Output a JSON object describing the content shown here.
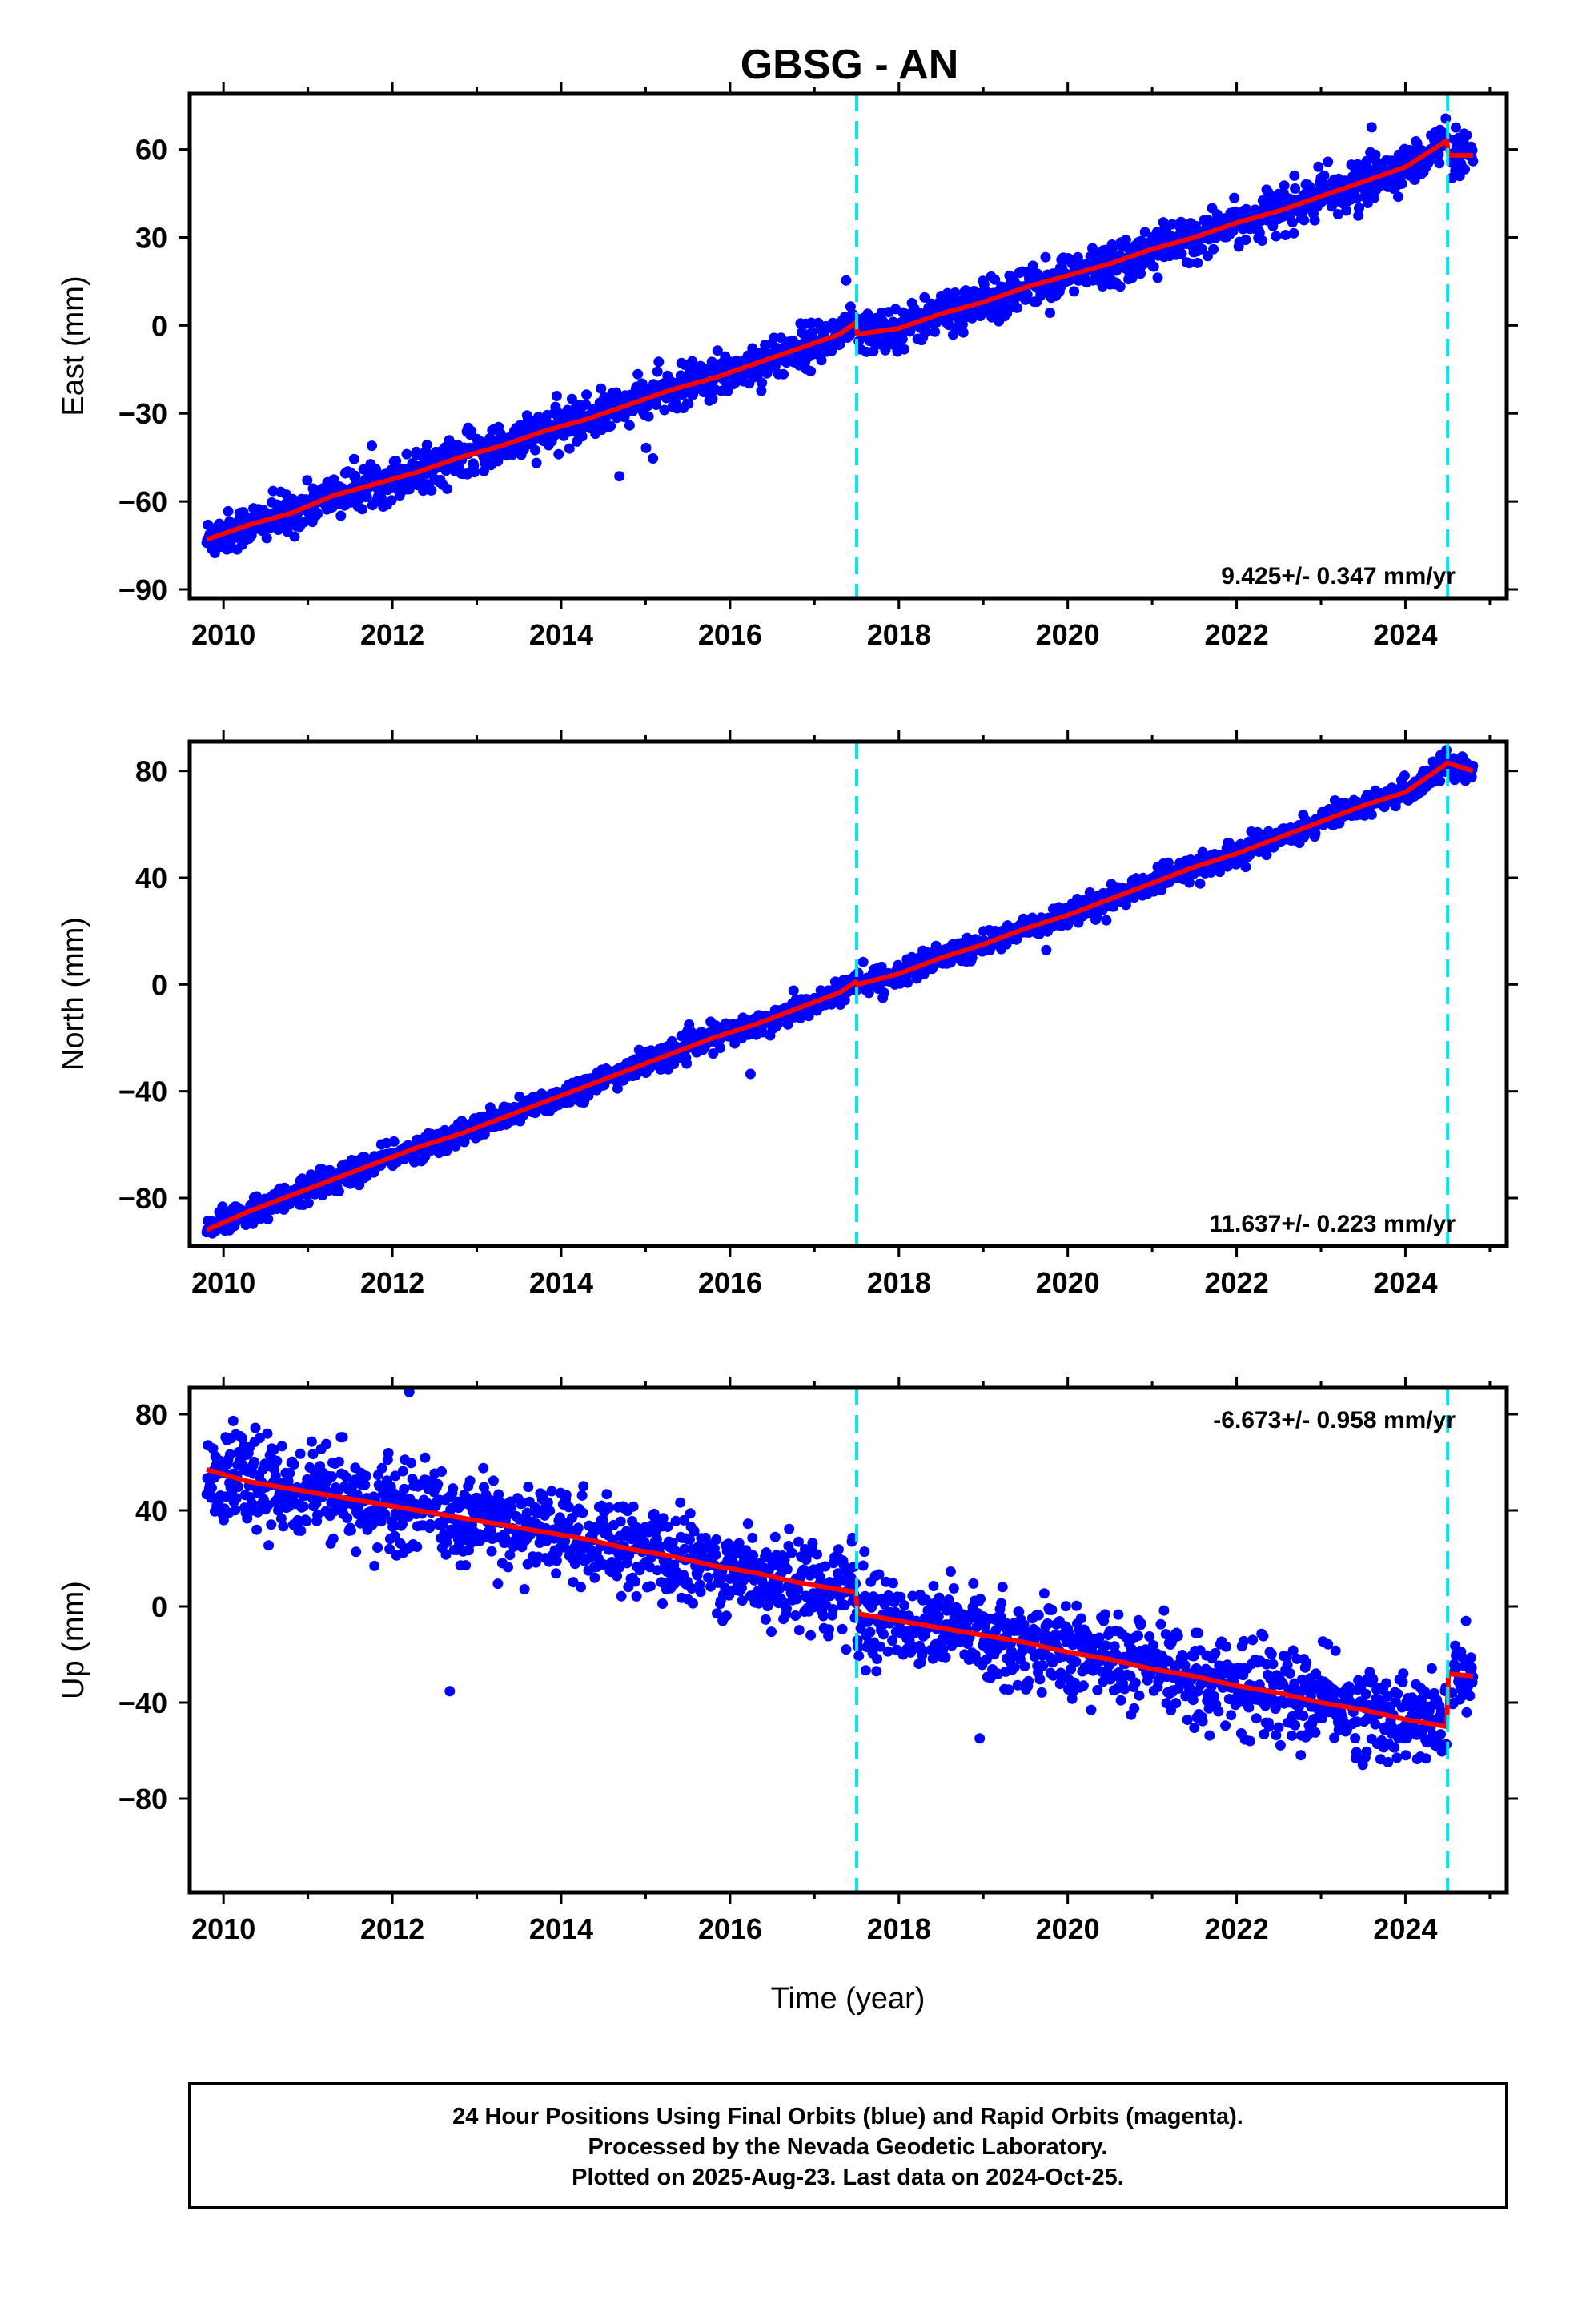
{
  "title": "GBSG - AN",
  "xlabel": "Time (year)",
  "footer": {
    "line1": "24 Hour Positions Using Final Orbits (blue) and Rapid Orbits (magenta).",
    "line2": "Processed by the Nevada Geodetic Laboratory.",
    "line3": "Plotted on 2025-Aug-23. Last data on 2024-Oct-25."
  },
  "colors": {
    "data": "#0000ff",
    "model": "#ff0000",
    "events": "#00e5ee",
    "frame": "#000000"
  },
  "chart_data": [
    {
      "type": "scatter",
      "ylabel": "East (mm)",
      "rate_label": "9.425+/- 0.347 mm/yr",
      "rate_position": "bottom-right",
      "xlim": [
        2009.6,
        2025.2
      ],
      "ylim": [
        -93,
        79
      ],
      "x_ticks": [
        "2010",
        "2012",
        "2014",
        "2016",
        "2018",
        "2020",
        "2022",
        "2024"
      ],
      "y_ticks": [
        "60",
        "30",
        "0",
        "-30",
        "-60",
        "-90"
      ],
      "events_x": [
        2017.5,
        2024.5
      ],
      "model": {
        "x": [
          2009.8,
          2010.3,
          2010.8,
          2011.3,
          2011.8,
          2012.3,
          2012.8,
          2013.3,
          2013.8,
          2014.3,
          2014.8,
          2015.3,
          2015.8,
          2016.3,
          2016.8,
          2017.3,
          2017.49,
          2017.51,
          2018.0,
          2018.5,
          2019.0,
          2019.5,
          2020.0,
          2020.5,
          2021.0,
          2021.5,
          2022.0,
          2022.5,
          2023.0,
          2023.5,
          2024.0,
          2024.49,
          2024.51,
          2024.8
        ],
        "y": [
          -73,
          -68,
          -64,
          -58,
          -54,
          -50,
          -45,
          -41,
          -36,
          -32,
          -27,
          -22,
          -18,
          -13,
          -8,
          -3,
          1,
          -3,
          -1,
          4,
          8,
          13,
          17,
          21,
          26,
          30,
          35,
          39,
          44,
          49,
          54,
          63,
          58,
          58
        ]
      },
      "scatter_sigma": 3.5
    },
    {
      "type": "scatter",
      "ylabel": "North (mm)",
      "rate_label": "11.637+/- 0.223 mm/yr",
      "rate_position": "bottom-right",
      "xlim": [
        2009.6,
        2025.2
      ],
      "ylim": [
        -98,
        91
      ],
      "x_ticks": [
        "2010",
        "2012",
        "2014",
        "2016",
        "2018",
        "2020",
        "2022",
        "2024"
      ],
      "y_ticks": [
        "80",
        "40",
        "0",
        "-40",
        "-80"
      ],
      "events_x": [
        2017.5,
        2024.5
      ],
      "model": {
        "x": [
          2009.8,
          2010.3,
          2010.8,
          2011.3,
          2011.8,
          2012.3,
          2012.8,
          2013.3,
          2013.8,
          2014.3,
          2014.8,
          2015.3,
          2015.8,
          2016.3,
          2016.8,
          2017.3,
          2017.49,
          2017.51,
          2018.0,
          2018.5,
          2019.0,
          2019.5,
          2020.0,
          2020.5,
          2021.0,
          2021.5,
          2022.0,
          2022.5,
          2023.0,
          2023.5,
          2024.0,
          2024.5,
          2024.8
        ],
        "y": [
          -92,
          -85,
          -79,
          -73,
          -67,
          -61,
          -56,
          -50,
          -44,
          -38,
          -32,
          -26,
          -20,
          -15,
          -9,
          -3,
          1,
          0,
          4,
          10,
          15,
          21,
          26,
          32,
          38,
          44,
          49,
          55,
          61,
          67,
          72,
          83,
          80
        ]
      },
      "scatter_sigma": 2.2
    },
    {
      "type": "scatter",
      "ylabel": "Up (mm)",
      "rate_label": "-6.673+/- 0.958 mm/yr",
      "rate_position": "top-right",
      "xlim": [
        2009.6,
        2025.2
      ],
      "ylim": [
        -119,
        91
      ],
      "x_ticks": [
        "2010",
        "2012",
        "2014",
        "2016",
        "2018",
        "2020",
        "2022",
        "2024"
      ],
      "y_ticks": [
        "80",
        "40",
        "0",
        "-40",
        "-80"
      ],
      "events_x": [
        2017.5,
        2024.5
      ],
      "model": {
        "x": [
          2009.8,
          2010.3,
          2010.8,
          2011.3,
          2011.8,
          2012.3,
          2012.8,
          2013.3,
          2013.8,
          2014.3,
          2014.8,
          2015.3,
          2015.8,
          2016.3,
          2016.8,
          2017.3,
          2017.49,
          2017.51,
          2018.0,
          2018.5,
          2019.0,
          2019.5,
          2020.0,
          2020.5,
          2021.0,
          2021.5,
          2022.0,
          2022.5,
          2023.0,
          2023.5,
          2024.0,
          2024.49,
          2024.51,
          2024.8
        ],
        "y": [
          57,
          52,
          49,
          46,
          43,
          40,
          37,
          34,
          31,
          28,
          24,
          21,
          17,
          14,
          10,
          7,
          6,
          -3,
          -6,
          -9,
          -12,
          -15,
          -19,
          -22,
          -26,
          -29,
          -33,
          -36,
          -40,
          -43,
          -47,
          -50,
          -28,
          -29
        ]
      },
      "scatter_sigma": 9
    }
  ]
}
